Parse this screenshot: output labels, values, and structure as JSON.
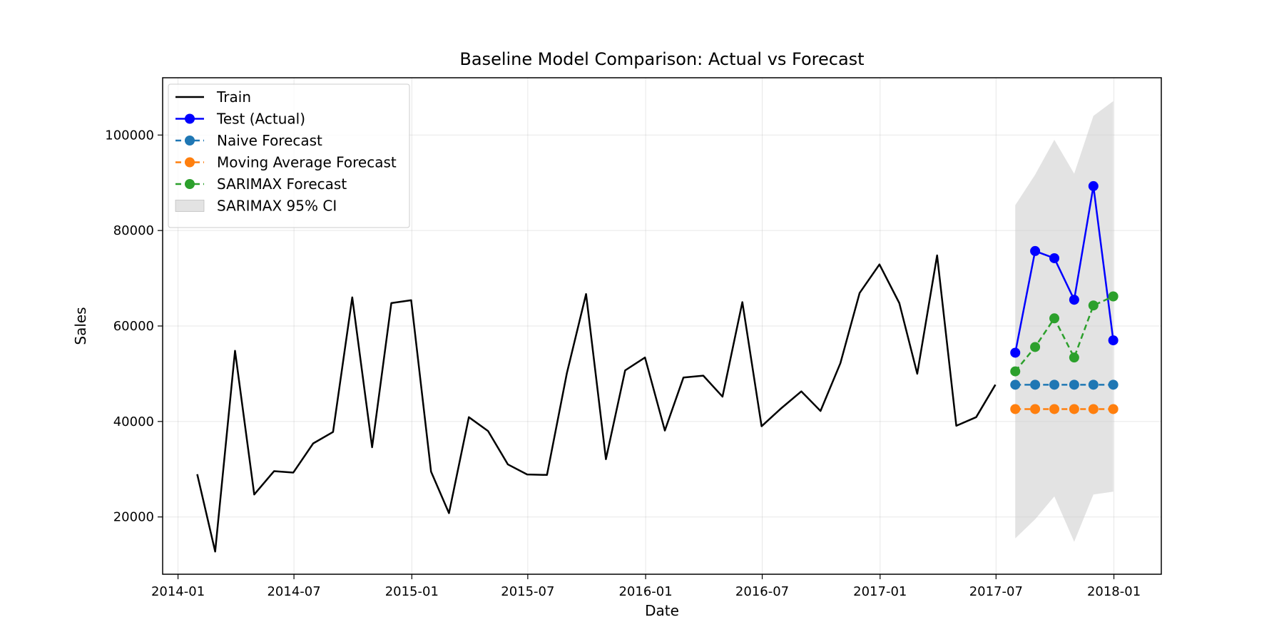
{
  "chart_data": {
    "type": "line",
    "title": "Baseline Model Comparison: Actual vs Forecast",
    "xlabel": "Date",
    "ylabel": "Sales",
    "xlim": [
      "2013-12-08",
      "2018-03-16"
    ],
    "ylim": [
      8000,
      112000
    ],
    "x_ticks": [
      "2014-01",
      "2014-07",
      "2015-01",
      "2015-07",
      "2016-01",
      "2016-07",
      "2017-01",
      "2017-07",
      "2018-01"
    ],
    "y_ticks": [
      20000,
      40000,
      60000,
      80000,
      100000
    ],
    "grid": true,
    "legend_position": "top-left",
    "series": [
      {
        "name": "Train",
        "color": "#000000",
        "style": "solid",
        "marker": false,
        "x": [
          "2014-01-31",
          "2014-02-28",
          "2014-03-31",
          "2014-04-30",
          "2014-05-31",
          "2014-06-30",
          "2014-07-31",
          "2014-08-31",
          "2014-09-30",
          "2014-10-31",
          "2014-11-30",
          "2014-12-31",
          "2015-01-31",
          "2015-02-28",
          "2015-03-31",
          "2015-04-30",
          "2015-05-31",
          "2015-06-30",
          "2015-07-31",
          "2015-08-31",
          "2015-09-30",
          "2015-10-31",
          "2015-11-30",
          "2015-12-31",
          "2016-01-31",
          "2016-02-29",
          "2016-03-31",
          "2016-04-30",
          "2016-05-31",
          "2016-06-30",
          "2016-07-31",
          "2016-08-31",
          "2016-09-30",
          "2016-10-31",
          "2016-11-30",
          "2016-12-31",
          "2017-01-31",
          "2017-02-28",
          "2017-03-31",
          "2017-04-30",
          "2017-05-31",
          "2017-06-30"
        ],
        "values": [
          28950,
          12750,
          54800,
          24700,
          29600,
          29300,
          35400,
          37800,
          66000,
          34600,
          64800,
          65400,
          29500,
          20800,
          40900,
          38000,
          31000,
          28900,
          28800,
          50100,
          66700,
          32100,
          50700,
          53400,
          38100,
          49200,
          49600,
          45200,
          65000,
          39000,
          42800,
          46300,
          42200,
          52200,
          66900,
          72900,
          64800,
          50000,
          74800,
          39100,
          40900,
          47700
        ]
      },
      {
        "name": "Test (Actual)",
        "color": "#0000ff",
        "style": "solid",
        "marker": true,
        "x": [
          "2017-07-31",
          "2017-08-31",
          "2017-09-30",
          "2017-10-31",
          "2017-11-30",
          "2017-12-31"
        ],
        "values": [
          54400,
          75700,
          74200,
          65500,
          89300,
          57000
        ]
      },
      {
        "name": "Naive Forecast",
        "color": "#1f77b4",
        "style": "dashed",
        "marker": true,
        "x": [
          "2017-07-31",
          "2017-08-31",
          "2017-09-30",
          "2017-10-31",
          "2017-11-30",
          "2017-12-31"
        ],
        "values": [
          47700,
          47700,
          47700,
          47700,
          47700,
          47700
        ]
      },
      {
        "name": "Moving Average Forecast",
        "color": "#ff7f0e",
        "style": "dashed",
        "marker": true,
        "x": [
          "2017-07-31",
          "2017-08-31",
          "2017-09-30",
          "2017-10-31",
          "2017-11-30",
          "2017-12-31"
        ],
        "values": [
          42600,
          42600,
          42600,
          42600,
          42600,
          42600
        ]
      },
      {
        "name": "SARIMAX Forecast",
        "color": "#2ca02c",
        "style": "dashed",
        "marker": true,
        "x": [
          "2017-07-31",
          "2017-08-31",
          "2017-09-30",
          "2017-10-31",
          "2017-11-30",
          "2017-12-31"
        ],
        "values": [
          50500,
          55600,
          61600,
          53400,
          64300,
          66200
        ]
      }
    ],
    "confidence_interval": {
      "name": "SARIMAX 95% CI",
      "color": "#cccccc",
      "x": [
        "2017-07-31",
        "2017-08-31",
        "2017-09-30",
        "2017-10-31",
        "2017-11-30",
        "2017-12-31"
      ],
      "lower": [
        15500,
        19500,
        24300,
        14800,
        24700,
        25300
      ],
      "upper": [
        85300,
        91700,
        99000,
        91900,
        104000,
        107100
      ]
    }
  }
}
